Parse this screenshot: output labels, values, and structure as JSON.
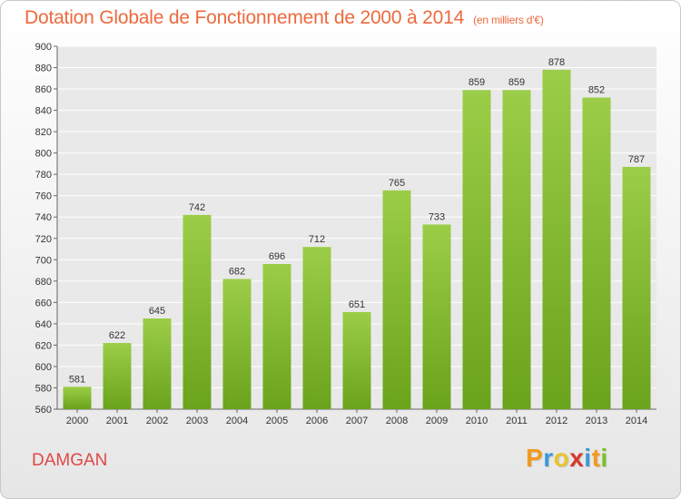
{
  "header": {
    "title": "Dotation Globale de Fonctionnement de 2000 à 2014",
    "unit": "(en milliers d'€)"
  },
  "footer": {
    "town": "DAMGAN",
    "logo_letters": [
      "P",
      "r",
      "o",
      "x",
      "i",
      "t",
      "i"
    ],
    "logo_colors": [
      "#f39a1e",
      "#3a9ad9",
      "#e8c52a",
      "#d8382c",
      "#3a9ad9",
      "#f39a1e",
      "#7cbf2a"
    ]
  },
  "chart_data": {
    "type": "bar",
    "title": "Dotation Globale de Fonctionnement de 2000 à 2014",
    "xlabel": "",
    "ylabel": "",
    "categories": [
      "2000",
      "2001",
      "2002",
      "2003",
      "2004",
      "2005",
      "2006",
      "2007",
      "2008",
      "2009",
      "2010",
      "2011",
      "2012",
      "2013",
      "2014"
    ],
    "values": [
      581,
      622,
      645,
      742,
      682,
      696,
      712,
      651,
      765,
      733,
      859,
      859,
      878,
      852,
      787
    ],
    "ylim": [
      560,
      900
    ],
    "yticks": [
      560,
      580,
      600,
      620,
      640,
      660,
      680,
      700,
      720,
      740,
      760,
      780,
      800,
      820,
      840,
      860,
      880,
      900
    ],
    "grid": true,
    "bar_color_top": "#9ccd48",
    "bar_color_bottom": "#6aa31c"
  }
}
